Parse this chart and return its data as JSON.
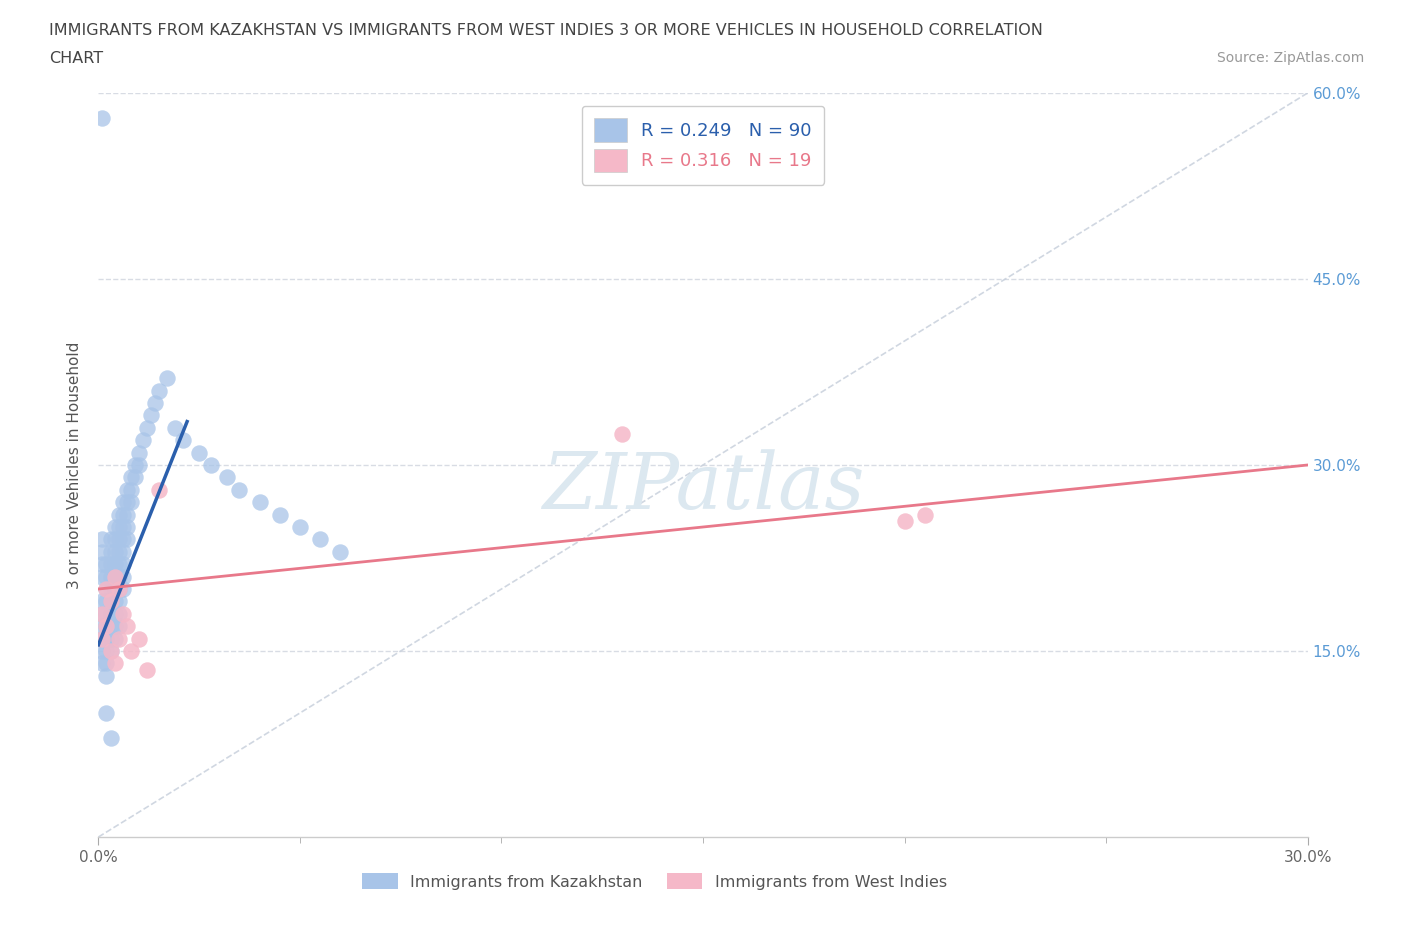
{
  "title_line1": "IMMIGRANTS FROM KAZAKHSTAN VS IMMIGRANTS FROM WEST INDIES 3 OR MORE VEHICLES IN HOUSEHOLD CORRELATION",
  "title_line2": "CHART",
  "source": "Source: ZipAtlas.com",
  "ylabel": "3 or more Vehicles in Household",
  "xmin": 0.0,
  "xmax": 0.3,
  "ymin": 0.0,
  "ymax": 0.6,
  "xtick_major": [
    0.0,
    0.3
  ],
  "xtick_minor": [
    0.05,
    0.1,
    0.15,
    0.2,
    0.25
  ],
  "ytick_vals": [
    0.15,
    0.3,
    0.45,
    0.6
  ],
  "kazakhstan_color": "#a8c4e8",
  "westindies_color": "#f5b8c8",
  "kazakhstan_line_color": "#2b5fac",
  "westindies_line_color": "#e8788a",
  "diag_line_color": "#c8d0dc",
  "background_color": "#ffffff",
  "grid_color": "#d8dce4",
  "right_tick_color": "#5b9bd5",
  "watermark_color": "#dce8f0",
  "R_kaz": 0.249,
  "N_kaz": 90,
  "R_wi": 0.316,
  "N_wi": 19,
  "kaz_x": [
    0.001,
    0.001,
    0.001,
    0.001,
    0.001,
    0.001,
    0.001,
    0.001,
    0.001,
    0.001,
    0.002,
    0.002,
    0.002,
    0.002,
    0.002,
    0.002,
    0.002,
    0.002,
    0.002,
    0.002,
    0.003,
    0.003,
    0.003,
    0.003,
    0.003,
    0.003,
    0.003,
    0.003,
    0.003,
    0.003,
    0.004,
    0.004,
    0.004,
    0.004,
    0.004,
    0.004,
    0.004,
    0.004,
    0.004,
    0.004,
    0.005,
    0.005,
    0.005,
    0.005,
    0.005,
    0.005,
    0.005,
    0.005,
    0.005,
    0.005,
    0.006,
    0.006,
    0.006,
    0.006,
    0.006,
    0.006,
    0.006,
    0.006,
    0.007,
    0.007,
    0.007,
    0.007,
    0.007,
    0.008,
    0.008,
    0.008,
    0.009,
    0.009,
    0.01,
    0.01,
    0.011,
    0.012,
    0.013,
    0.014,
    0.015,
    0.017,
    0.019,
    0.021,
    0.025,
    0.028,
    0.032,
    0.035,
    0.04,
    0.045,
    0.05,
    0.055,
    0.06,
    0.001,
    0.002,
    0.003
  ],
  "kaz_y": [
    0.19,
    0.21,
    0.22,
    0.23,
    0.24,
    0.18,
    0.17,
    0.16,
    0.15,
    0.14,
    0.2,
    0.21,
    0.22,
    0.19,
    0.18,
    0.17,
    0.16,
    0.15,
    0.14,
    0.13,
    0.23,
    0.24,
    0.22,
    0.21,
    0.2,
    0.19,
    0.18,
    0.17,
    0.16,
    0.15,
    0.25,
    0.24,
    0.23,
    0.22,
    0.21,
    0.2,
    0.19,
    0.18,
    0.17,
    0.16,
    0.26,
    0.25,
    0.24,
    0.23,
    0.22,
    0.21,
    0.2,
    0.19,
    0.18,
    0.17,
    0.27,
    0.26,
    0.25,
    0.24,
    0.23,
    0.22,
    0.21,
    0.2,
    0.28,
    0.27,
    0.26,
    0.25,
    0.24,
    0.29,
    0.28,
    0.27,
    0.3,
    0.29,
    0.31,
    0.3,
    0.32,
    0.33,
    0.34,
    0.35,
    0.36,
    0.37,
    0.33,
    0.32,
    0.31,
    0.3,
    0.29,
    0.28,
    0.27,
    0.26,
    0.25,
    0.24,
    0.23,
    0.58,
    0.1,
    0.08
  ],
  "wi_x": [
    0.001,
    0.001,
    0.002,
    0.002,
    0.003,
    0.003,
    0.004,
    0.004,
    0.005,
    0.005,
    0.006,
    0.007,
    0.008,
    0.01,
    0.015,
    0.13,
    0.2,
    0.205,
    0.012
  ],
  "wi_y": [
    0.18,
    0.16,
    0.2,
    0.17,
    0.19,
    0.15,
    0.21,
    0.14,
    0.2,
    0.16,
    0.18,
    0.17,
    0.15,
    0.16,
    0.28,
    0.325,
    0.255,
    0.26,
    0.135
  ],
  "kaz_line_x0": 0.0,
  "kaz_line_x1": 0.022,
  "kaz_line_y0": 0.155,
  "kaz_line_y1": 0.335,
  "wi_line_x0": 0.0,
  "wi_line_x1": 0.3,
  "wi_line_y0": 0.2,
  "wi_line_y1": 0.3
}
